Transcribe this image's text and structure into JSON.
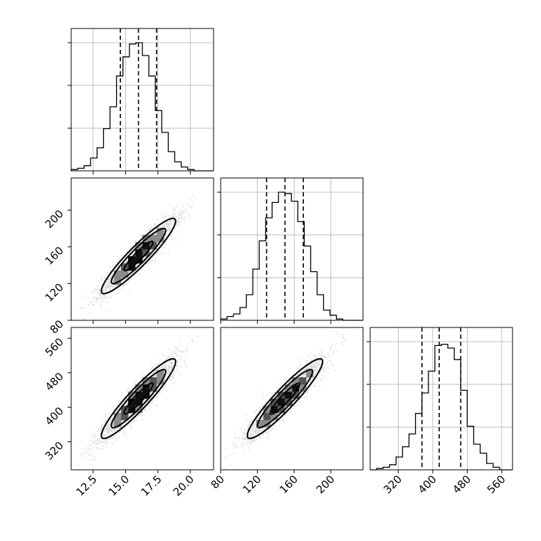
{
  "chart_data": {
    "type": "corner",
    "parameters": [
      {
        "ticks": [
          12.5,
          15.0,
          17.5,
          20.0
        ],
        "tick_labels": [
          "12.5",
          "15.0",
          "17.5",
          "20.0"
        ],
        "range": [
          10.8,
          21.8
        ],
        "quantiles": [
          14.6,
          16.0,
          17.4
        ],
        "hist_bins": [
          10.8,
          11.3,
          11.8,
          12.3,
          12.8,
          13.3,
          13.8,
          14.3,
          14.8,
          15.3,
          15.8,
          16.3,
          16.8,
          17.3,
          17.8,
          18.3,
          18.8,
          19.3,
          19.8,
          20.3,
          20.8,
          21.3,
          21.8
        ],
        "hist_counts": [
          0.01,
          0.02,
          0.04,
          0.1,
          0.18,
          0.33,
          0.5,
          0.74,
          0.89,
          0.99,
          1.0,
          0.9,
          0.74,
          0.47,
          0.3,
          0.15,
          0.07,
          0.03,
          0.01,
          0.0,
          0.0,
          0.0
        ]
      },
      {
        "ticks": [
          80,
          120,
          160,
          200
        ],
        "tick_labels": [
          "80",
          "120",
          "160",
          "200"
        ],
        "range": [
          80,
          235
        ],
        "quantiles": [
          130,
          150,
          170
        ],
        "hist_bins": [
          80,
          87,
          94,
          101,
          108,
          115,
          122,
          129,
          136,
          143,
          150,
          157,
          164,
          171,
          178,
          185,
          192,
          199,
          206,
          213,
          220,
          227,
          234
        ],
        "hist_counts": [
          0.01,
          0.03,
          0.05,
          0.1,
          0.2,
          0.4,
          0.62,
          0.8,
          0.92,
          1.0,
          0.99,
          0.93,
          0.77,
          0.58,
          0.38,
          0.2,
          0.08,
          0.04,
          0.01,
          0.0,
          0.0,
          0.0
        ]
      },
      {
        "ticks": [
          320,
          400,
          480,
          560
        ],
        "tick_labels": [
          "320",
          "400",
          "480",
          "560"
        ],
        "range": [
          255,
          585
        ],
        "quantiles": [
          375,
          415,
          465
        ],
        "hist_bins": [
          255,
          270,
          285,
          300,
          315,
          330,
          345,
          360,
          375,
          390,
          405,
          420,
          435,
          450,
          465,
          480,
          495,
          510,
          525,
          540,
          555,
          570,
          585
        ],
        "hist_counts": [
          0.0,
          0.01,
          0.02,
          0.04,
          0.1,
          0.18,
          0.28,
          0.44,
          0.6,
          0.77,
          0.97,
          0.98,
          0.95,
          0.86,
          0.62,
          0.34,
          0.2,
          0.13,
          0.05,
          0.02,
          0.0,
          0.0
        ]
      }
    ],
    "pairs": [
      {
        "x_param": 0,
        "y_param": 1,
        "center": [
          16.0,
          150
        ],
        "std": [
          1.4,
          20
        ],
        "corr": 0.93
      },
      {
        "x_param": 0,
        "y_param": 2,
        "center": [
          16.0,
          420
        ],
        "std": [
          1.4,
          45
        ],
        "corr": 0.93
      },
      {
        "x_param": 1,
        "y_param": 2,
        "center": [
          150,
          420
        ],
        "std": [
          20,
          45
        ],
        "corr": 0.93
      }
    ]
  }
}
